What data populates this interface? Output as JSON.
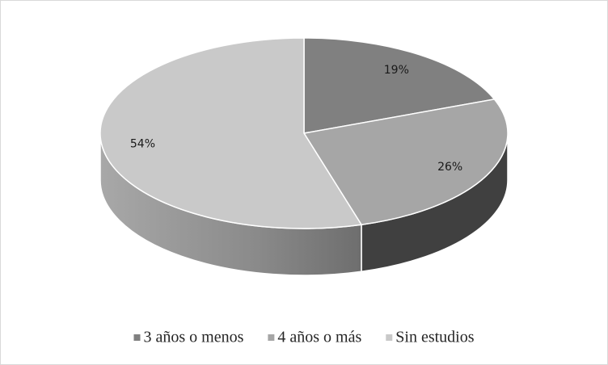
{
  "chart_data": {
    "type": "pie",
    "categories": [
      "3 años o menos",
      "4 años o más",
      "Sin estudios"
    ],
    "values": [
      19,
      26,
      54
    ],
    "value_labels": [
      "19%",
      "26%",
      "54%"
    ],
    "colors": [
      "#808080",
      "#a6a6a6",
      "#c9c9c9"
    ],
    "legend": "bottom"
  }
}
